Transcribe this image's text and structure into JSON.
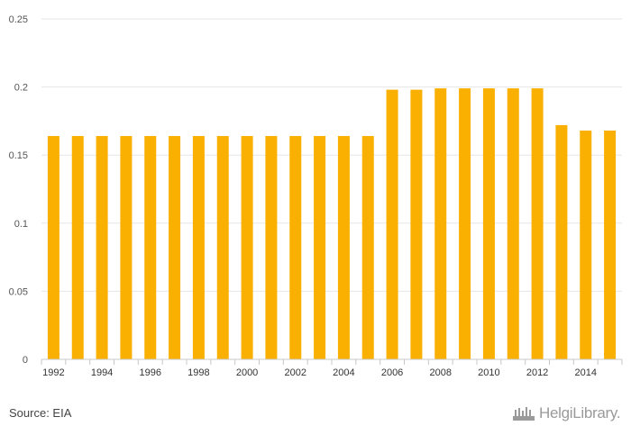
{
  "source_text": "Source: EIA",
  "logo_text": "HelgiLibrary.",
  "colors": {
    "bar": "#f9b000",
    "grid": "#e6e6e6",
    "axis": "#c8c8c8"
  },
  "chart_data": {
    "type": "bar",
    "title": "",
    "xlabel": "",
    "ylabel": "",
    "ylim": [
      0,
      0.25
    ],
    "y_ticks": [
      "0",
      "0.05",
      "0.1",
      "0.15",
      "0.2",
      "0.25"
    ],
    "x_tick_labels": [
      "1992",
      "1994",
      "1996",
      "1998",
      "2000",
      "2002",
      "2004",
      "2006",
      "2008",
      "2010",
      "2012",
      "2014"
    ],
    "categories": [
      "1992",
      "1993",
      "1994",
      "1995",
      "1996",
      "1997",
      "1998",
      "1999",
      "2000",
      "2001",
      "2002",
      "2003",
      "2004",
      "2005",
      "2006",
      "2007",
      "2008",
      "2009",
      "2010",
      "2011",
      "2012",
      "2013",
      "2014",
      "2015"
    ],
    "values": [
      0.164,
      0.164,
      0.164,
      0.164,
      0.164,
      0.164,
      0.164,
      0.164,
      0.164,
      0.164,
      0.164,
      0.164,
      0.164,
      0.164,
      0.198,
      0.198,
      0.199,
      0.199,
      0.199,
      0.199,
      0.199,
      0.172,
      0.168,
      0.168
    ],
    "grid": true,
    "legend": "none"
  }
}
